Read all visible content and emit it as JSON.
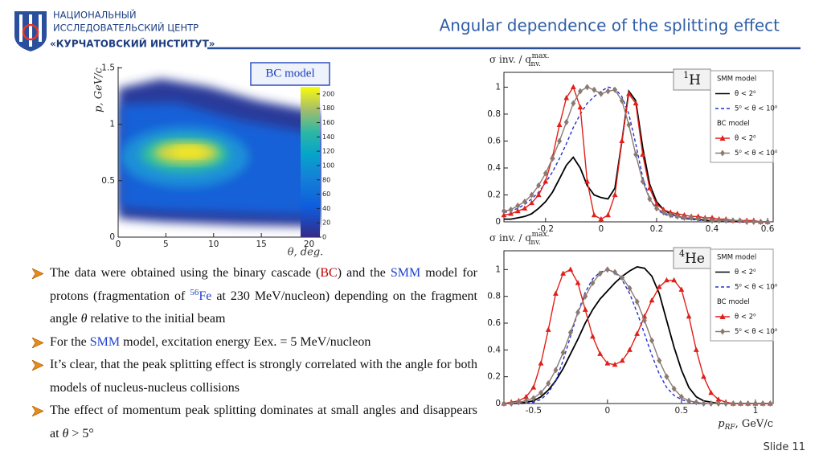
{
  "header": {
    "logo_lines": [
      "НАЦИОНАЛЬНЫЙ",
      "ИССЛЕДОВАТЕЛЬСКИЙ ЦЕНТР",
      "«КУРЧАТОВСКИЙ ИНСТИТУТ»"
    ],
    "title": "Angular dependence of the splitting effect"
  },
  "chart_data": [
    {
      "type": "heatmap",
      "title": "BC model",
      "xlabel": "θ, deg.",
      "ylabel": "p, GeV/c",
      "xlim": [
        0,
        21.3
      ],
      "xticks": [
        0,
        5,
        10,
        15,
        20
      ],
      "ylim": [
        0,
        1.51
      ],
      "yticks": [
        0,
        0.5,
        1,
        1.5
      ],
      "zlim": [
        0,
        210
      ],
      "zticks": [
        0,
        20,
        40,
        60,
        80,
        100,
        120,
        140,
        160,
        180,
        200
      ]
    },
    {
      "type": "line",
      "ylabel": "σ inv. / σ",
      "ylabel_sup": "max.",
      "ylabel_sub": "inv.",
      "panel_label": "H",
      "panel_label_sup": "1",
      "legend_groups": [
        "SMM model",
        "BC model"
      ],
      "xlim": [
        -0.35,
        0.62
      ],
      "xticks": [
        -0.2,
        0,
        0.2,
        0.4,
        0.6
      ],
      "ylim": [
        0,
        1.11
      ],
      "yticks": [
        0,
        0.2,
        0.4,
        0.6,
        0.8,
        1
      ],
      "x": [
        -0.35,
        -0.325,
        -0.3,
        -0.275,
        -0.25,
        -0.225,
        -0.2,
        -0.175,
        -0.15,
        -0.125,
        -0.1,
        -0.075,
        -0.05,
        -0.025,
        0,
        0.025,
        0.05,
        0.075,
        0.1,
        0.125,
        0.15,
        0.175,
        0.2,
        0.225,
        0.25,
        0.275,
        0.3,
        0.325,
        0.35,
        0.375,
        0.4,
        0.425,
        0.45,
        0.475,
        0.5,
        0.525,
        0.55,
        0.575,
        0.6
      ],
      "series": [
        {
          "name": "θ < 2⁰",
          "color": "#000000",
          "style": "solid",
          "values": [
            0.02,
            0.02,
            0.03,
            0.04,
            0.06,
            0.1,
            0.15,
            0.22,
            0.32,
            0.42,
            0.48,
            0.4,
            0.27,
            0.2,
            0.18,
            0.17,
            0.25,
            0.6,
            0.97,
            0.9,
            0.55,
            0.28,
            0.15,
            0.09,
            0.06,
            0.04,
            0.03,
            0.02,
            0.02,
            0.01,
            0.01,
            0.01,
            0.01,
            0.01,
            0,
            0,
            0,
            0,
            0
          ]
        },
        {
          "name": "5⁰ < θ < 10⁰",
          "color": "#2233cc",
          "style": "dashed",
          "values": [
            0.07,
            0.08,
            0.1,
            0.13,
            0.17,
            0.22,
            0.29,
            0.37,
            0.47,
            0.58,
            0.7,
            0.8,
            0.88,
            0.93,
            0.97,
            1.0,
            0.99,
            0.93,
            0.8,
            0.58,
            0.33,
            0.17,
            0.09,
            0.06,
            0.04,
            0.03,
            0.02,
            0.02,
            0.01,
            0.01,
            0.01,
            0.01,
            0,
            0,
            0,
            0,
            0,
            0,
            0
          ]
        },
        {
          "name": "θ < 2⁰",
          "color": "#e0201a",
          "style": "triangle",
          "values": [
            0.05,
            0.06,
            0.08,
            0.1,
            0.14,
            0.2,
            0.3,
            0.48,
            0.72,
            0.92,
            1.0,
            0.85,
            0.3,
            0.05,
            0.02,
            0.05,
            0.2,
            0.6,
            0.95,
            0.88,
            0.5,
            0.25,
            0.13,
            0.09,
            0.07,
            0.06,
            0.05,
            0.04,
            0.04,
            0.03,
            0.03,
            0.02,
            0.02,
            0.01,
            0.01,
            0.01,
            0.01,
            0,
            0
          ]
        },
        {
          "name": "5⁰ < θ < 10⁰",
          "color": "#8a7a72",
          "style": "diamond",
          "values": [
            0.08,
            0.09,
            0.12,
            0.15,
            0.2,
            0.27,
            0.36,
            0.47,
            0.6,
            0.74,
            0.88,
            0.97,
            1.0,
            0.98,
            0.95,
            0.97,
            0.98,
            0.9,
            0.72,
            0.5,
            0.3,
            0.17,
            0.1,
            0.07,
            0.05,
            0.04,
            0.03,
            0.03,
            0.02,
            0.02,
            0.01,
            0.01,
            0.01,
            0.01,
            0.01,
            0,
            0,
            0,
            0
          ]
        }
      ]
    },
    {
      "type": "line",
      "ylabel": "σ inv. / σ",
      "ylabel_sup": "max.",
      "ylabel_sub": "inv.",
      "panel_label": "He",
      "panel_label_sup": "4",
      "legend_groups": [
        "SMM model",
        "BC model"
      ],
      "xlabel": "p",
      "xlabel_sub": "RF",
      "xlabel_rest": ", GeV/c",
      "xlim": [
        -0.7,
        1.12
      ],
      "xticks": [
        -0.5,
        0,
        0.5,
        1
      ],
      "ylim": [
        0,
        1.14
      ],
      "yticks": [
        0,
        0.2,
        0.4,
        0.6,
        0.8,
        1
      ],
      "x": [
        -0.7,
        -0.65,
        -0.6,
        -0.55,
        -0.5,
        -0.45,
        -0.4,
        -0.35,
        -0.3,
        -0.25,
        -0.2,
        -0.15,
        -0.1,
        -0.05,
        0,
        0.05,
        0.1,
        0.15,
        0.2,
        0.25,
        0.3,
        0.35,
        0.4,
        0.45,
        0.5,
        0.55,
        0.6,
        0.65,
        0.7,
        0.75,
        0.8,
        0.85,
        0.9,
        0.95,
        1,
        1.05,
        1.1
      ],
      "series": [
        {
          "name": "θ < 2⁰",
          "color": "#000000",
          "style": "solid",
          "values": [
            0,
            0,
            0,
            0.01,
            0.02,
            0.05,
            0.1,
            0.17,
            0.26,
            0.37,
            0.48,
            0.6,
            0.7,
            0.78,
            0.84,
            0.9,
            0.95,
            0.99,
            1.02,
            1.01,
            0.95,
            0.82,
            0.62,
            0.42,
            0.25,
            0.12,
            0.05,
            0.02,
            0.01,
            0,
            0,
            0,
            0,
            0,
            0,
            0,
            0
          ]
        },
        {
          "name": "5⁰ < θ < 10⁰",
          "color": "#2233cc",
          "style": "dashed",
          "values": [
            0,
            0,
            0,
            0,
            0.01,
            0.03,
            0.08,
            0.17,
            0.32,
            0.5,
            0.68,
            0.83,
            0.93,
            0.98,
            1.0,
            0.98,
            0.92,
            0.82,
            0.68,
            0.52,
            0.36,
            0.22,
            0.12,
            0.06,
            0.03,
            0.01,
            0,
            0,
            0,
            0,
            0,
            0,
            0,
            0,
            0,
            0,
            0
          ]
        },
        {
          "name": "θ < 2⁰",
          "color": "#e0201a",
          "style": "triangle",
          "values": [
            0,
            0.01,
            0.02,
            0.05,
            0.12,
            0.3,
            0.55,
            0.82,
            0.97,
            1.0,
            0.9,
            0.7,
            0.5,
            0.37,
            0.3,
            0.29,
            0.32,
            0.4,
            0.52,
            0.65,
            0.77,
            0.87,
            0.92,
            0.92,
            0.85,
            0.65,
            0.4,
            0.2,
            0.08,
            0.03,
            0.01,
            0,
            0,
            0,
            0,
            0,
            0
          ]
        },
        {
          "name": "5⁰ < θ < 10⁰",
          "color": "#8a7a72",
          "style": "diamond",
          "values": [
            0,
            0,
            0.01,
            0.02,
            0.04,
            0.08,
            0.15,
            0.25,
            0.38,
            0.53,
            0.68,
            0.8,
            0.9,
            0.97,
            1.0,
            0.98,
            0.94,
            0.86,
            0.76,
            0.62,
            0.47,
            0.32,
            0.2,
            0.11,
            0.05,
            0.02,
            0.01,
            0,
            0,
            0,
            0,
            0,
            0,
            0,
            0,
            0,
            0
          ]
        }
      ]
    }
  ],
  "bullets": [
    [
      {
        "text": "The data were obtained using the binary cascade ("
      },
      {
        "text": "BC",
        "color": "#c00000"
      },
      {
        "text": ") and the "
      },
      {
        "text": "SMM",
        "color": "#2040d0"
      },
      {
        "text": " model for protons (fragmentation of "
      },
      {
        "text": "56",
        "color": "#2040d0",
        "sup": true
      },
      {
        "text": "Fe",
        "color": "#2040d0"
      },
      {
        "text": " at 230 MeV/nucleon) depending on the fragment angle "
      },
      {
        "text": "θ",
        "italic": true
      },
      {
        "text": " relative to the initial beam"
      }
    ],
    [
      {
        "text": "For the "
      },
      {
        "text": "SMM",
        "color": "#2040d0"
      },
      {
        "text": " model, excitation energy Eex. = 5 MeV/nucleon"
      }
    ],
    [
      {
        "text": "It’s clear, that the peak splitting effect is strongly correlated with the angle for both models of nucleus-nucleus collisions"
      }
    ],
    [
      {
        "text": "The effect of momentum peak splitting dominates at small angles and disappears at "
      },
      {
        "text": "θ",
        "italic": true
      },
      {
        "text": " > 5°"
      }
    ]
  ],
  "footer": "Slide 11"
}
